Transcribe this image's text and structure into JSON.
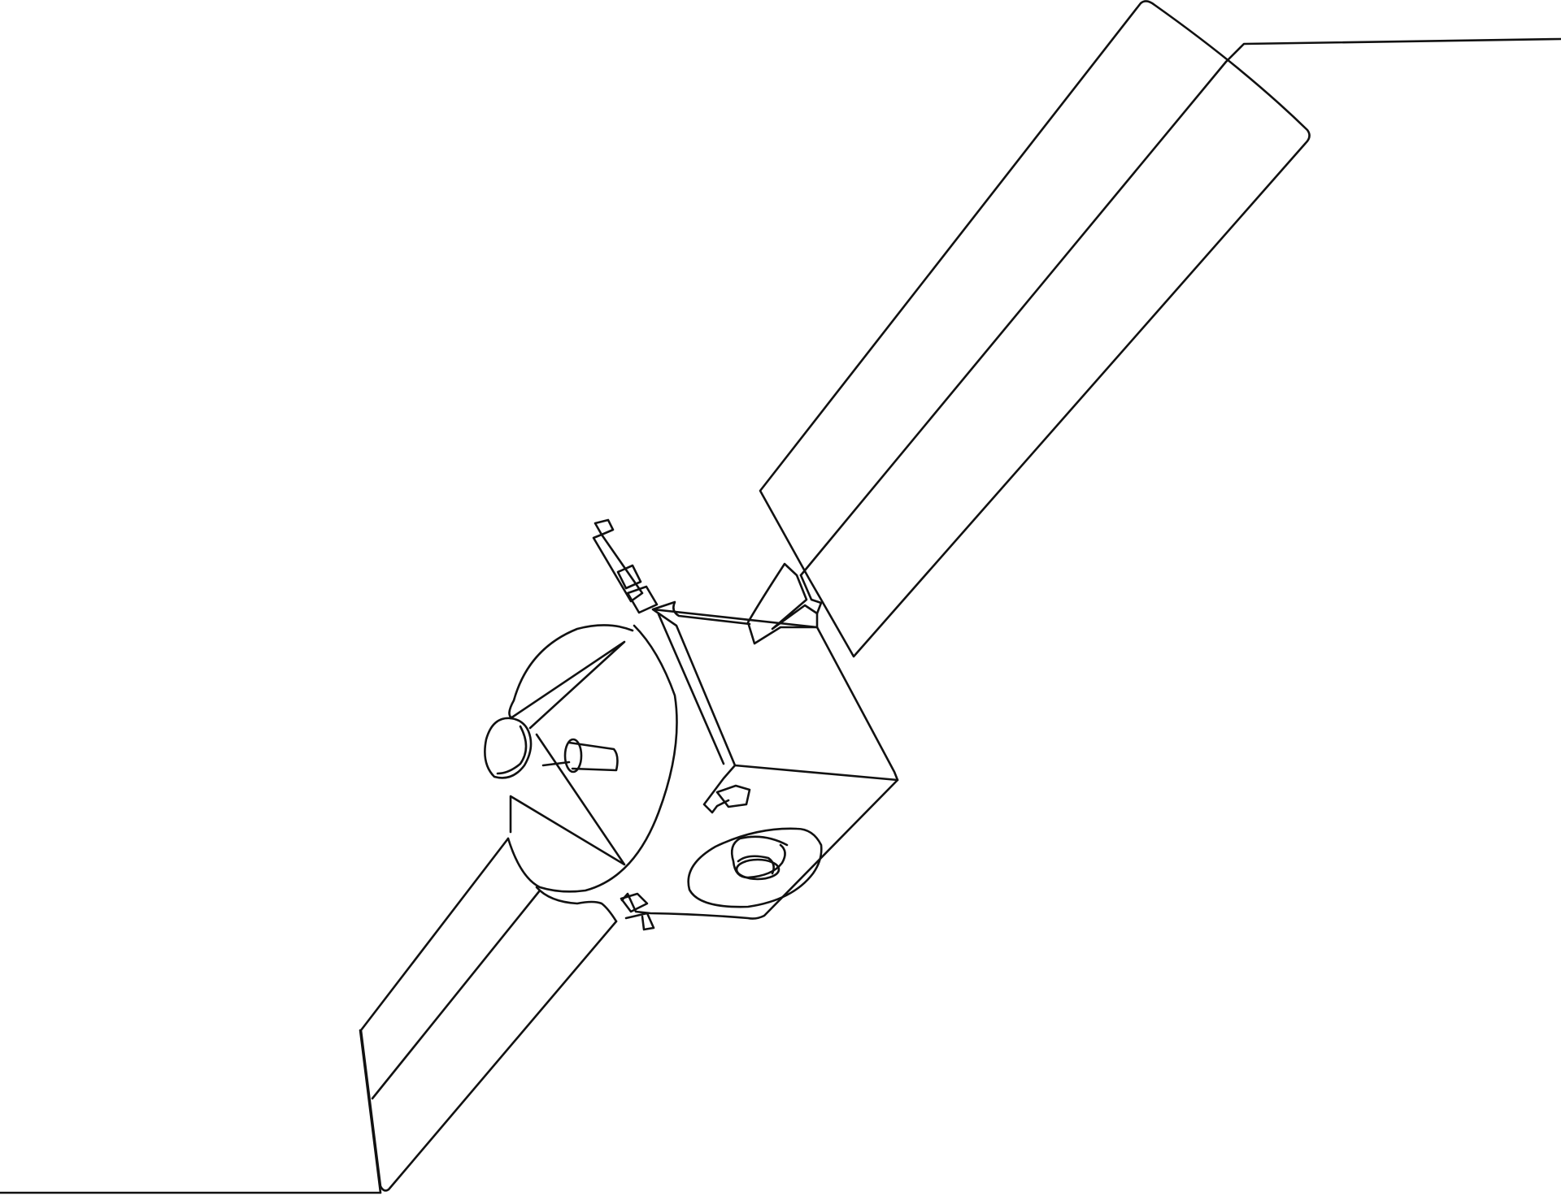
{
  "illustration": {
    "subject": "satellite-line-art",
    "style": "single-continuous-line",
    "colors": {
      "background": "#ffffff",
      "stroke": "#111111"
    }
  }
}
